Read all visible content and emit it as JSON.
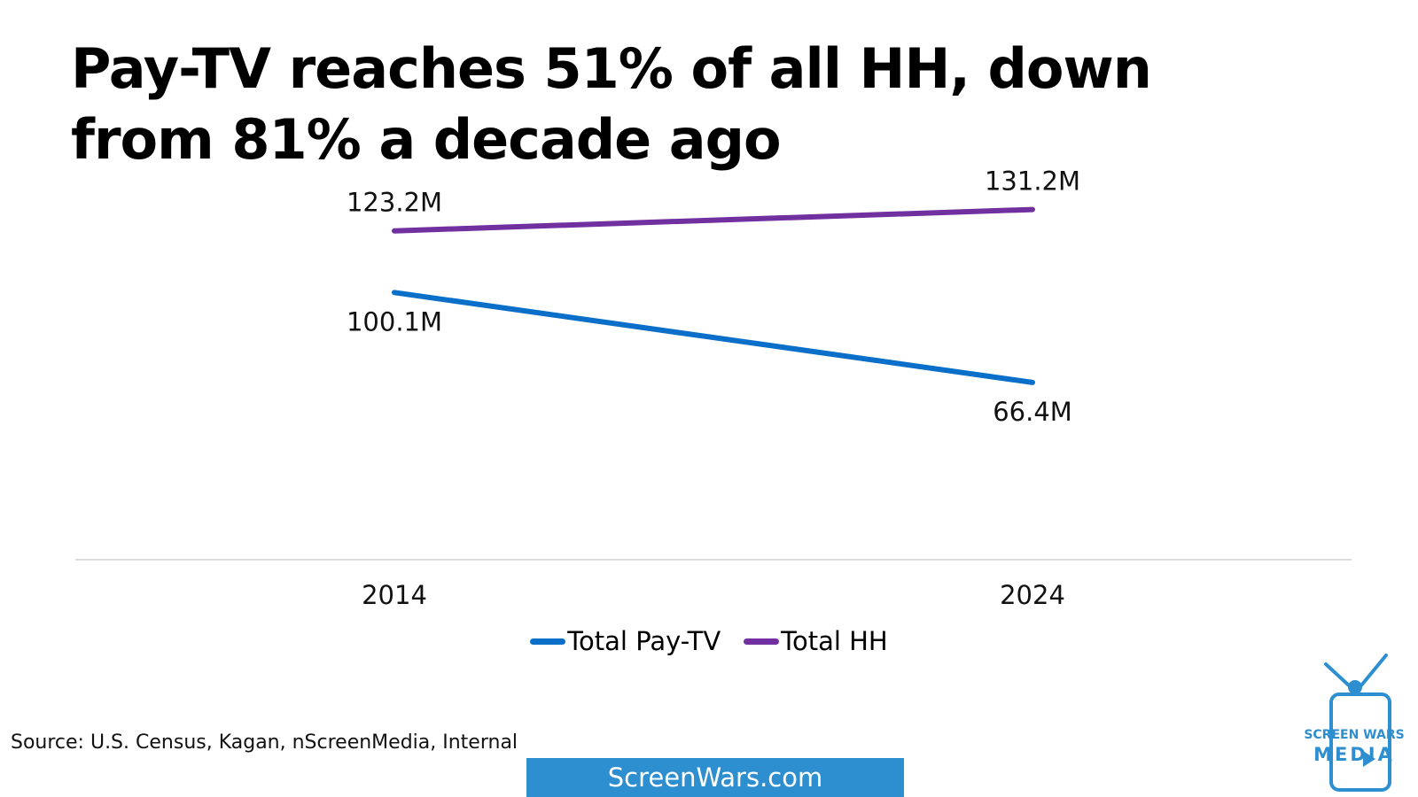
{
  "title": {
    "line1": "Pay-TV reaches 51% of all HH, down",
    "line2": "from 81% a decade ago"
  },
  "chart_data": {
    "type": "line",
    "x": [
      "2014",
      "2024"
    ],
    "series": [
      {
        "name": "Total Pay-TV",
        "values": [
          100.1,
          66.4
        ],
        "labels": [
          "100.1M",
          "66.4M"
        ],
        "color": "#0a6fc9",
        "label_position": "below"
      },
      {
        "name": "Total HH",
        "values": [
          123.2,
          131.2
        ],
        "labels": [
          "123.2M",
          "131.2M"
        ],
        "color": "#7030a0",
        "label_position": "above"
      }
    ],
    "ylim": [
      0,
      145
    ],
    "grid": false,
    "legend_placement": "bottom"
  },
  "source": "Source: U.S. Census, Kagan, nScreenMedia, Internal",
  "site_banner": "ScreenWars.com",
  "logo": {
    "line1": "SCREEN WARS",
    "line2": "MEDIA",
    "color": "#2e8fd0",
    "icon": "tv-icon"
  },
  "colors": {
    "axis": "#d0d0d0",
    "banner": "#2e8fd0"
  }
}
